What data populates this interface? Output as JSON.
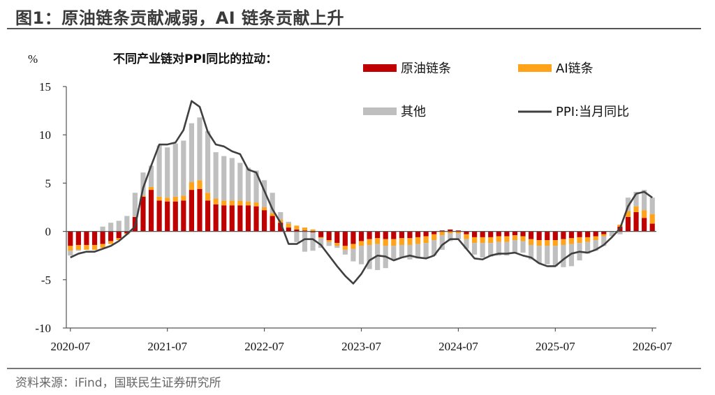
{
  "header": {
    "figure_title": "图1：原油链条贡献减弱，AI 链条贡献上升"
  },
  "footer": {
    "source": "资料来源：iFind，国联民生证券研究所"
  },
  "colors": {
    "crude": "#C00000",
    "ai": "#FFA31A",
    "other": "#BFBFBF",
    "ppi": "#404040",
    "axis": "#555555"
  },
  "chart_data": {
    "type": "bar",
    "stacked": true,
    "title": "不同产业链对PPI同比的拉动：",
    "ylabel": "%",
    "xlabel": "",
    "ylim": [
      -10,
      15
    ],
    "yticks": [
      15,
      10,
      5,
      0,
      -5,
      -10
    ],
    "x_tick_labels": [
      "2020-07",
      "2021-07",
      "2022-07",
      "2023-07",
      "2024-07",
      "2025-07",
      "2026-07"
    ],
    "x_tick_positions": [
      "2020-07",
      "2021-07",
      "2022-07",
      "2023-07",
      "2024-07",
      "2025-07",
      "2026-07"
    ],
    "categories": [
      "2020-07",
      "2020-08",
      "2020-09",
      "2020-10",
      "2020-11",
      "2020-12",
      "2021-01",
      "2021-02",
      "2021-03",
      "2021-04",
      "2021-05",
      "2021-06",
      "2021-07",
      "2021-08",
      "2021-09",
      "2021-10",
      "2021-11",
      "2021-12",
      "2022-01",
      "2022-02",
      "2022-03",
      "2022-04",
      "2022-05",
      "2022-06",
      "2022-07",
      "2022-08",
      "2022-09",
      "2022-10",
      "2022-11",
      "2022-12",
      "2023-01",
      "2023-02",
      "2023-03",
      "2023-04",
      "2023-05",
      "2023-06",
      "2023-07",
      "2023-08",
      "2023-09",
      "2023-10",
      "2023-11",
      "2023-12",
      "2024-01",
      "2024-02",
      "2024-03",
      "2024-04",
      "2024-05",
      "2024-06",
      "2024-07",
      "2024-08",
      "2024-09",
      "2024-10",
      "2024-11",
      "2024-12",
      "2025-01",
      "2025-02",
      "2025-03",
      "2025-04",
      "2025-05",
      "2025-06",
      "2025-07",
      "2025-08",
      "2025-09",
      "2025-10",
      "2025-11",
      "2025-12",
      "2026-01",
      "2026-02",
      "2026-03",
      "2026-04",
      "2026-05",
      "2026-06",
      "2026-07"
    ],
    "legend": {
      "crude": "原油链条",
      "ai": "AI链条",
      "other": "其他",
      "ppi": "PPI:当月同比"
    },
    "series": [
      {
        "name": "原油链条",
        "key": "crude",
        "values": [
          -1.5,
          -1.4,
          -1.4,
          -1.4,
          -1.3,
          -1.0,
          -0.7,
          -0.2,
          1.5,
          3.6,
          4.3,
          3.2,
          3.1,
          3.1,
          3.2,
          4.3,
          4.4,
          3.2,
          2.8,
          2.7,
          2.7,
          2.7,
          2.7,
          2.6,
          2.2,
          1.6,
          0.9,
          0.4,
          0.2,
          0.1,
          -0.1,
          -0.6,
          -0.9,
          -1.2,
          -1.5,
          -1.3,
          -1.0,
          -0.8,
          -0.7,
          -0.8,
          -0.8,
          -0.7,
          -0.7,
          -0.6,
          -0.5,
          -0.3,
          0.1,
          0.2,
          0.1,
          -0.3,
          -0.6,
          -0.6,
          -0.6,
          -0.5,
          -0.5,
          -0.4,
          -0.5,
          -0.8,
          -0.9,
          -0.9,
          -0.9,
          -0.8,
          -0.7,
          -0.6,
          -0.6,
          -0.5,
          -0.3,
          0.0,
          0.5,
          1.5,
          2.0,
          1.4,
          0.8
        ]
      },
      {
        "name": "AI链条",
        "key": "ai",
        "values": [
          -0.5,
          -0.5,
          -0.5,
          -0.5,
          -0.4,
          -0.3,
          -0.2,
          -0.1,
          0.0,
          0.1,
          0.3,
          0.4,
          0.4,
          0.5,
          0.5,
          0.8,
          0.9,
          0.8,
          0.6,
          0.5,
          0.5,
          0.5,
          0.4,
          0.4,
          0.3,
          0.3,
          0.3,
          0.4,
          0.4,
          0.3,
          0.2,
          -0.1,
          -0.2,
          -0.3,
          -0.4,
          -0.5,
          -0.5,
          -0.6,
          -0.6,
          -0.7,
          -0.7,
          -0.7,
          -0.7,
          -0.7,
          -0.7,
          -0.6,
          -0.4,
          -0.2,
          -0.2,
          -0.5,
          -0.6,
          -0.6,
          -0.6,
          -0.6,
          -0.6,
          -0.5,
          -0.5,
          -0.6,
          -0.6,
          -0.6,
          -0.6,
          -0.6,
          -0.6,
          -0.6,
          -0.5,
          -0.4,
          -0.2,
          0.0,
          0.2,
          0.6,
          0.6,
          0.8,
          1.0
        ]
      },
      {
        "name": "其他",
        "key": "other",
        "values": [
          -0.5,
          -0.1,
          0.0,
          0.0,
          0.5,
          0.9,
          1.1,
          1.6,
          2.5,
          2.4,
          2.2,
          5.3,
          5.2,
          5.5,
          5.7,
          6.1,
          6.5,
          6.4,
          4.8,
          4.6,
          4.4,
          3.9,
          3.5,
          3.3,
          2.8,
          2.1,
          0.8,
          0.2,
          -1.1,
          -2.1,
          -1.9,
          -1.0,
          -0.4,
          -0.2,
          -0.5,
          -1.3,
          -1.9,
          -2.5,
          -2.7,
          -2.3,
          -1.4,
          -1.3,
          -1.5,
          -1.5,
          -1.6,
          -1.6,
          -1.5,
          -0.8,
          -0.6,
          -1.0,
          -1.2,
          -1.5,
          -1.4,
          -1.4,
          -1.4,
          -1.3,
          -1.2,
          -1.5,
          -1.8,
          -1.9,
          -2.1,
          -2.3,
          -2.3,
          -1.8,
          -1.2,
          -1.1,
          -1.0,
          -0.5,
          -0.3,
          1.4,
          1.5,
          2.1,
          1.7
        ]
      },
      {
        "name": "PPI:当月同比",
        "key": "ppi",
        "type": "line",
        "values": [
          -2.7,
          -2.3,
          -2.1,
          -2.1,
          -1.8,
          -1.5,
          -1.0,
          -0.3,
          0.5,
          4.5,
          6.8,
          9.0,
          9.0,
          9.2,
          10.5,
          13.5,
          12.9,
          10.3,
          9.0,
          8.8,
          8.3,
          8.0,
          6.4,
          6.1,
          4.2,
          2.3,
          0.9,
          -1.3,
          -1.3,
          -0.8,
          -0.8,
          -1.4,
          -2.5,
          -3.6,
          -4.6,
          -5.4,
          -4.4,
          -3.0,
          -2.5,
          -2.6,
          -3.0,
          -2.7,
          -2.5,
          -2.7,
          -2.8,
          -2.5,
          -1.4,
          -0.8,
          -0.8,
          -1.8,
          -2.8,
          -2.9,
          -2.5,
          -2.3,
          -2.3,
          -2.2,
          -2.5,
          -2.7,
          -3.3,
          -3.6,
          -3.6,
          -2.9,
          -2.3,
          -2.1,
          -2.2,
          -1.9,
          -1.4,
          -0.6,
          0.3,
          2.6,
          3.9,
          4.1,
          3.5
        ]
      }
    ],
    "grid": false,
    "legend_placement": "top-right"
  }
}
